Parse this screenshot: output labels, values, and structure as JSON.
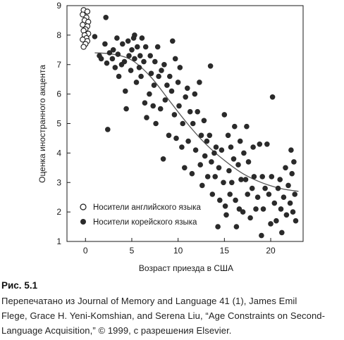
{
  "chart_data": {
    "type": "scatter",
    "title": "",
    "xlabel": "Возраст приезда в США",
    "ylabel": "Оценка иностранного акцента",
    "xlim": [
      -2,
      23.5
    ],
    "ylim": [
      1,
      9
    ],
    "x_ticks": [
      0,
      5,
      10,
      15,
      20
    ],
    "y_ticks": [
      1,
      2,
      3,
      4,
      5,
      6,
      7,
      8,
      9
    ],
    "grid": false,
    "legend_position": "bottom-left",
    "series": [
      {
        "name": "Носители английского языка",
        "marker": "open-circle",
        "color": "#1a1a1a",
        "points": [
          [
            -0.2,
            8.85
          ],
          [
            0.2,
            8.8
          ],
          [
            -0.3,
            8.7
          ],
          [
            0.1,
            8.6
          ],
          [
            -0.1,
            8.5
          ],
          [
            0.3,
            8.45
          ],
          [
            -0.3,
            8.35
          ],
          [
            0.2,
            8.3
          ],
          [
            0.0,
            8.2
          ],
          [
            -0.2,
            8.15
          ],
          [
            0.3,
            8.05
          ],
          [
            -0.1,
            8.0
          ],
          [
            0.1,
            7.9
          ],
          [
            -0.3,
            7.85
          ],
          [
            0.2,
            7.8
          ],
          [
            0.0,
            7.7
          ],
          [
            -0.2,
            7.6
          ]
        ]
      },
      {
        "name": "Носители корейского языка",
        "marker": "filled-circle",
        "color": "#2a2a2a",
        "points": [
          [
            1.0,
            7.95
          ],
          [
            1.5,
            7.3
          ],
          [
            1.7,
            7.2
          ],
          [
            2.2,
            8.6
          ],
          [
            2.1,
            7.7
          ],
          [
            2.3,
            7.05
          ],
          [
            2.4,
            4.8
          ],
          [
            2.6,
            7.4
          ],
          [
            2.9,
            7.2
          ],
          [
            3.0,
            7.5
          ],
          [
            3.2,
            6.9
          ],
          [
            3.4,
            7.9
          ],
          [
            3.5,
            7.35
          ],
          [
            3.6,
            6.6
          ],
          [
            3.9,
            7.0
          ],
          [
            4.0,
            7.7
          ],
          [
            4.2,
            7.1
          ],
          [
            4.3,
            6.1
          ],
          [
            4.4,
            5.5
          ],
          [
            4.6,
            7.8
          ],
          [
            4.7,
            7.3
          ],
          [
            4.9,
            6.8
          ],
          [
            5.0,
            7.5
          ],
          [
            5.2,
            7.9
          ],
          [
            5.3,
            7.2
          ],
          [
            5.3,
            8.0
          ],
          [
            5.5,
            6.4
          ],
          [
            5.6,
            7.6
          ],
          [
            5.8,
            6.9
          ],
          [
            5.9,
            7.3
          ],
          [
            6.0,
            6.6
          ],
          [
            6.1,
            7.9
          ],
          [
            6.3,
            7.1
          ],
          [
            6.4,
            5.7
          ],
          [
            6.5,
            7.6
          ],
          [
            6.6,
            5.2
          ],
          [
            6.9,
            6.0
          ],
          [
            7.0,
            7.3
          ],
          [
            7.1,
            6.7
          ],
          [
            7.3,
            5.6
          ],
          [
            7.4,
            6.3
          ],
          [
            7.5,
            7.1
          ],
          [
            7.6,
            5.0
          ],
          [
            7.8,
            7.6
          ],
          [
            7.9,
            6.6
          ],
          [
            8.1,
            5.5
          ],
          [
            8.2,
            6.8
          ],
          [
            8.4,
            3.8
          ],
          [
            8.5,
            7.0
          ],
          [
            8.6,
            5.8
          ],
          [
            8.8,
            6.3
          ],
          [
            9.0,
            4.6
          ],
          [
            9.1,
            6.6
          ],
          [
            9.3,
            6.1
          ],
          [
            9.4,
            7.8
          ],
          [
            9.6,
            5.3
          ],
          [
            9.7,
            7.2
          ],
          [
            9.8,
            4.5
          ],
          [
            10.0,
            6.4
          ],
          [
            10.1,
            5.6
          ],
          [
            10.2,
            6.9
          ],
          [
            10.4,
            4.2
          ],
          [
            10.5,
            5.0
          ],
          [
            10.7,
            3.5
          ],
          [
            10.8,
            5.9
          ],
          [
            11.0,
            6.2
          ],
          [
            11.1,
            4.4
          ],
          [
            11.3,
            5.4
          ],
          [
            11.5,
            3.3
          ],
          [
            11.6,
            5.0
          ],
          [
            11.8,
            6.0
          ],
          [
            11.9,
            4.1
          ],
          [
            12.1,
            5.4
          ],
          [
            12.3,
            6.4
          ],
          [
            12.4,
            3.6
          ],
          [
            12.5,
            4.6
          ],
          [
            12.6,
            2.9
          ],
          [
            12.8,
            5.1
          ],
          [
            12.9,
            3.9
          ],
          [
            13.1,
            4.4
          ],
          [
            13.2,
            3.2
          ],
          [
            13.4,
            4.6
          ],
          [
            13.5,
            6.95
          ],
          [
            13.6,
            3.7
          ],
          [
            13.7,
            2.6
          ],
          [
            13.9,
            4.0
          ],
          [
            14.0,
            3.2
          ],
          [
            14.1,
            4.2
          ],
          [
            14.3,
            1.5
          ],
          [
            14.4,
            3.5
          ],
          [
            14.5,
            2.4
          ],
          [
            14.7,
            4.1
          ],
          [
            14.9,
            3.0
          ],
          [
            15.0,
            5.3
          ],
          [
            15.1,
            2.2
          ],
          [
            15.2,
            1.9
          ],
          [
            15.4,
            4.6
          ],
          [
            15.5,
            3.4
          ],
          [
            15.6,
            2.6
          ],
          [
            15.7,
            4.2
          ],
          [
            15.8,
            3.0
          ],
          [
            16.0,
            3.8
          ],
          [
            16.1,
            4.9
          ],
          [
            16.2,
            2.4
          ],
          [
            16.3,
            1.5
          ],
          [
            16.5,
            3.6
          ],
          [
            16.6,
            2.1
          ],
          [
            16.7,
            4.4
          ],
          [
            16.8,
            3.1
          ],
          [
            17.0,
            2.0
          ],
          [
            17.1,
            4.0
          ],
          [
            17.3,
            3.1
          ],
          [
            17.4,
            4.9
          ],
          [
            17.5,
            2.6
          ],
          [
            17.6,
            3.7
          ],
          [
            17.8,
            1.8
          ],
          [
            18.0,
            2.8
          ],
          [
            18.1,
            4.2
          ],
          [
            18.2,
            3.2
          ],
          [
            18.4,
            2.1
          ],
          [
            18.6,
            2.5
          ],
          [
            18.8,
            4.3
          ],
          [
            19.0,
            1.2
          ],
          [
            19.1,
            3.2
          ],
          [
            19.2,
            2.1
          ],
          [
            19.4,
            2.8
          ],
          [
            19.6,
            4.3
          ],
          [
            19.8,
            2.6
          ],
          [
            20.0,
            1.6
          ],
          [
            20.1,
            3.2
          ],
          [
            20.2,
            5.9
          ],
          [
            20.4,
            2.3
          ],
          [
            20.6,
            1.7
          ],
          [
            20.8,
            2.8
          ],
          [
            21.0,
            3.1
          ],
          [
            21.1,
            2.1
          ],
          [
            21.2,
            1.3
          ],
          [
            21.4,
            2.5
          ],
          [
            21.6,
            3.5
          ],
          [
            21.7,
            1.9
          ],
          [
            21.9,
            2.9
          ],
          [
            22.1,
            2.3
          ],
          [
            22.2,
            4.1
          ],
          [
            22.3,
            3.3
          ],
          [
            22.4,
            2.0
          ],
          [
            22.5,
            3.7
          ],
          [
            22.6,
            2.6
          ],
          [
            22.7,
            1.7
          ]
        ]
      }
    ],
    "fit_curve": [
      [
        1,
        7.4
      ],
      [
        3,
        7.35
      ],
      [
        5,
        7.15
      ],
      [
        7,
        6.6
      ],
      [
        9,
        5.8
      ],
      [
        11,
        5.0
      ],
      [
        13,
        4.3
      ],
      [
        15,
        3.75
      ],
      [
        17,
        3.3
      ],
      [
        19,
        3.0
      ],
      [
        21,
        2.8
      ],
      [
        23,
        2.7
      ]
    ]
  },
  "figure": {
    "label": "Рис. 5.1",
    "source_lines": [
      "Перепечатано из Journal of Memory and Language 41 (1), James Emil",
      "Flege, Grace H. Yeni-Komshian, and Serena Liu, “Age Constraints on Second-",
      "Language Acquisition,” © 1999, с разрешения Elsevier."
    ]
  }
}
